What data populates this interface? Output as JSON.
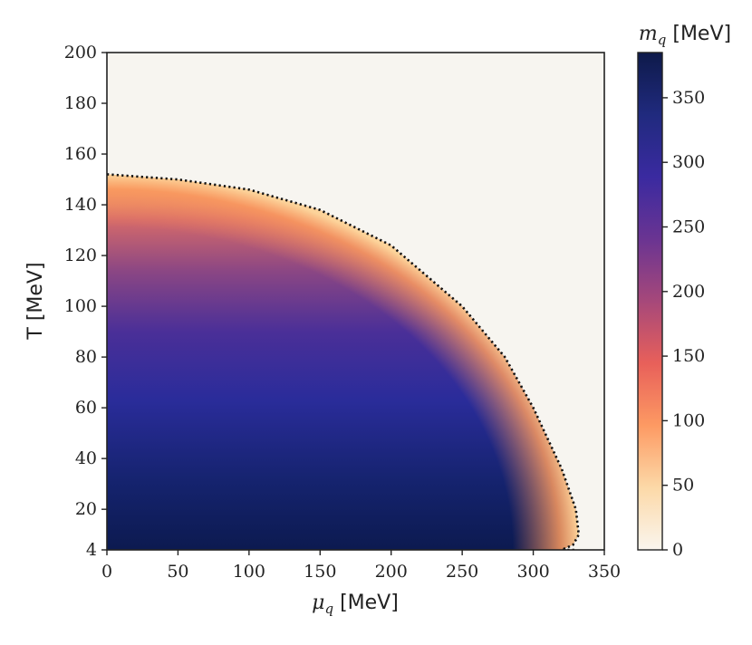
{
  "chart_data": {
    "type": "heatmap",
    "xlabel": {
      "symbol": "μ",
      "subscript": "q",
      "unit": " [MeV]"
    },
    "ylabel": "T [MeV]",
    "xlim": [
      0,
      350
    ],
    "ylim": [
      4,
      200
    ],
    "x_ticks": [
      "0",
      "50",
      "100",
      "150",
      "200",
      "250",
      "300",
      "350"
    ],
    "y_ticks": [
      "4",
      "20",
      "40",
      "60",
      "80",
      "100",
      "120",
      "140",
      "160",
      "180",
      "200"
    ],
    "colorbar": {
      "label": {
        "symbol": "m",
        "subscript": "q",
        "unit": " [MeV]"
      },
      "range": [
        0,
        385
      ],
      "ticks": [
        "0",
        "50",
        "100",
        "150",
        "200",
        "250",
        "300",
        "350"
      ],
      "colormap": [
        "#faf5ee",
        "#fcd9a8",
        "#fd9a63",
        "#e8605a",
        "#a6487a",
        "#6a3492",
        "#3a2aa0",
        "#202a7e",
        "#0e1a4a"
      ]
    },
    "phase_boundary": {
      "style": "dotted",
      "color": "#111111",
      "x": [
        0,
        50,
        100,
        150,
        200,
        250,
        280,
        300,
        320,
        330,
        332,
        328,
        320,
        330
      ],
      "y": [
        152,
        150,
        146,
        138,
        124,
        100,
        80,
        60,
        36,
        20,
        10,
        6,
        4,
        4
      ]
    },
    "background_color": "#f7f5f0"
  }
}
